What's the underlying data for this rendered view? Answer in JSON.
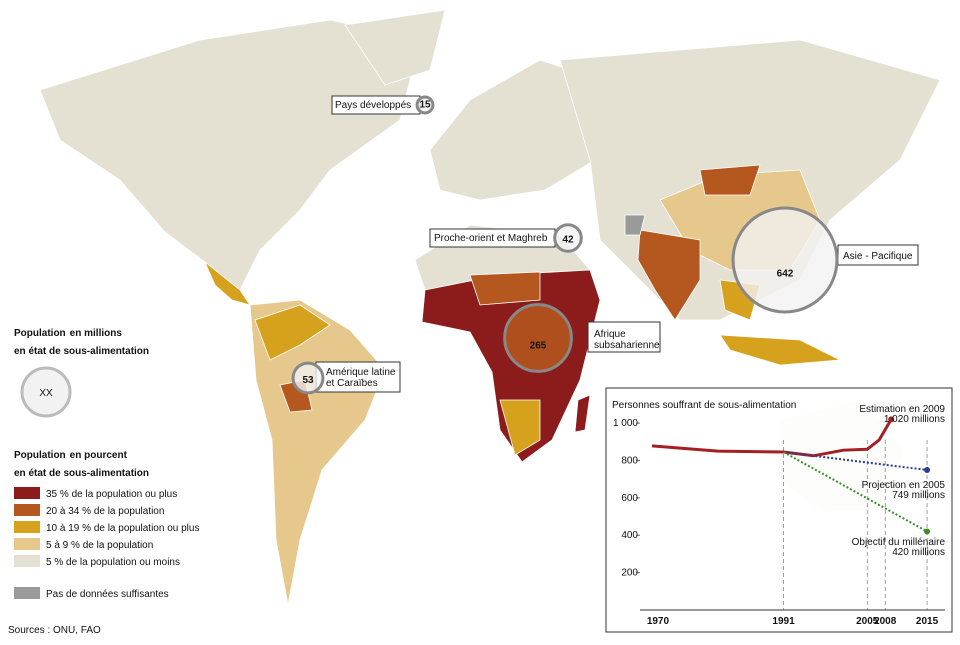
{
  "map": {
    "regions": [
      {
        "label": [
          "Pays développés"
        ],
        "value": 15
      },
      {
        "label": [
          "Proche-orient et Maghreb"
        ],
        "value": 42
      },
      {
        "label": [
          "Asie - Pacifique"
        ],
        "value": 642
      },
      {
        "label": [
          "Afrique",
          "subsaharienne"
        ],
        "value": 265
      },
      {
        "label": [
          "Amérique latine",
          "et Caraïbes"
        ],
        "value": 53
      }
    ],
    "size_legend": {
      "title_bold": [
        "Population",
        "en état de sous-alimentation"
      ],
      "title_small": "en millions",
      "sample": "XX"
    },
    "color_legend": {
      "title_bold": [
        "Population",
        "en état de sous-alimentation"
      ],
      "title_small": "en pourcent",
      "items": [
        {
          "label": "35 % de la population ou plus",
          "color": "#8c1c1c"
        },
        {
          "label": "20 à 34 % de la population",
          "color": "#b5581f"
        },
        {
          "label": "10 à 19 % de la population ou plus",
          "color": "#d6a21d"
        },
        {
          "label": "5 à 9 % de la population",
          "color": "#e6c88c"
        },
        {
          "label": "5 % de la population ou moins",
          "color": "#e4e0d2"
        }
      ],
      "no_data": {
        "label": "Pas de données suffisantes",
        "color": "#9a9a9a"
      }
    },
    "source": "Sources : ONU, FAO"
  },
  "chart_data": {
    "type": "line",
    "title": "Personnes souffrant de sous-alimentation",
    "xlim": [
      1967,
      2018
    ],
    "xticks": [
      1970,
      1991,
      2005,
      2008,
      2015
    ],
    "ylim": [
      0,
      1070
    ],
    "yticks": [
      200,
      400,
      600,
      800,
      {
        "value": 1000,
        "label": "1 000"
      }
    ],
    "series": [
      {
        "color": "#a31f24",
        "style": "solid",
        "x": [
          1969,
          1980,
          1991,
          1996,
          2001,
          2005,
          2007,
          2009
        ],
        "values": [
          878,
          850,
          845,
          825,
          855,
          860,
          910,
          1020
        ]
      },
      {
        "color": "#2a3d8f",
        "style": "dotted",
        "x": [
          1991,
          2015
        ],
        "values": [
          845,
          749
        ]
      },
      {
        "color": "#3a8f2a",
        "style": "dotted",
        "x": [
          1991,
          2015
        ],
        "values": [
          845,
          420
        ]
      }
    ],
    "annotations": [
      {
        "text": [
          "Estimation en 2009",
          "1 020 millions"
        ],
        "color": "#a31f24"
      },
      {
        "text": [
          "Projection en 2005",
          "749 millions"
        ],
        "color": "#2a3d8f"
      },
      {
        "text": [
          "Objectif du millénaire",
          "420 millions"
        ],
        "color": "#3a8f2a"
      }
    ]
  }
}
